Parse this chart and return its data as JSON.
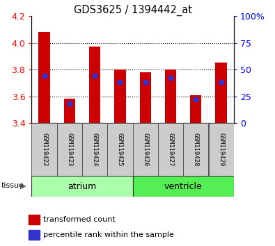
{
  "title": "GDS3625 / 1394442_at",
  "samples": [
    "GSM119422",
    "GSM119423",
    "GSM119424",
    "GSM119425",
    "GSM119426",
    "GSM119427",
    "GSM119428",
    "GSM119429"
  ],
  "red_values": [
    4.08,
    3.58,
    3.97,
    3.8,
    3.78,
    3.8,
    3.61,
    3.85
  ],
  "blue_pct": [
    44,
    18,
    44,
    38,
    38,
    42,
    22,
    38
  ],
  "ymin": 3.4,
  "ymax": 4.2,
  "yticks_left": [
    3.4,
    3.6,
    3.8,
    4.0,
    4.2
  ],
  "right_yticks": [
    0,
    25,
    50,
    75,
    100
  ],
  "bar_color": "#cc0000",
  "blue_color": "#3333cc",
  "atrium_color": "#aaffaa",
  "ventricle_color": "#55ee55",
  "sample_box_color": "#cccccc",
  "bar_width": 0.45
}
